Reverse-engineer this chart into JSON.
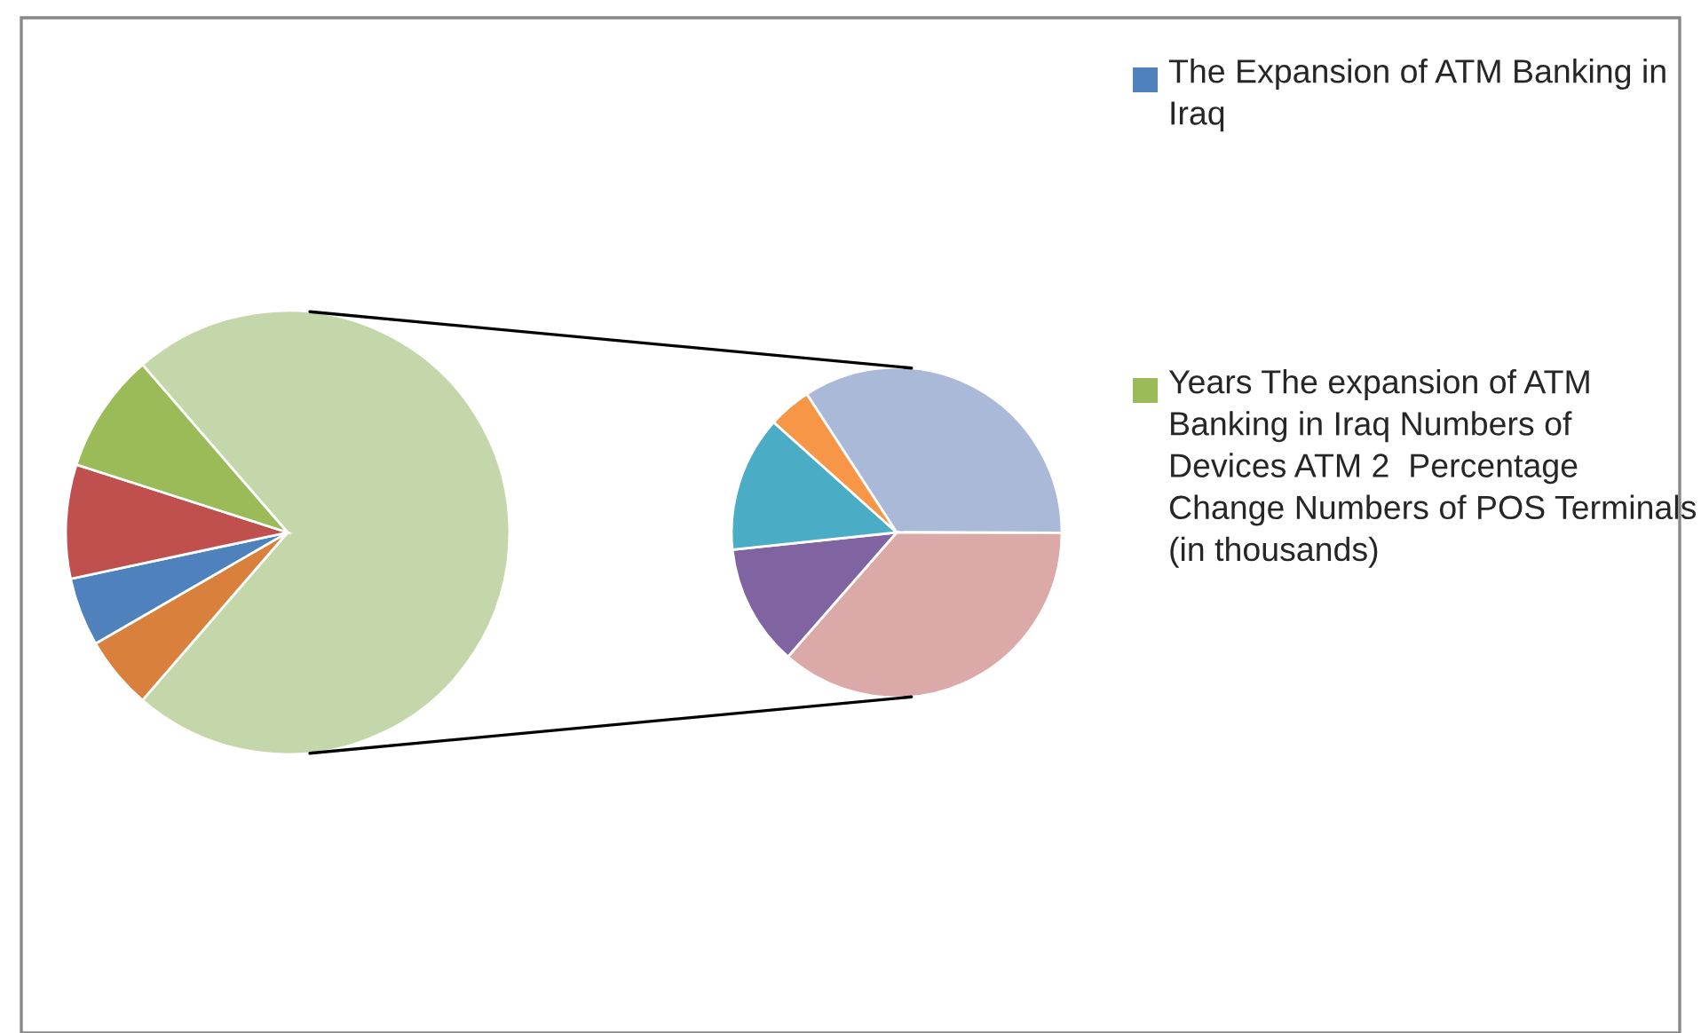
{
  "chart_data": [
    {
      "type": "pie",
      "categories": [
        null,
        null,
        "The Expansion of ATM Banking in Iraq",
        null,
        "Years The expansion of ATM Banking in Iraq Numbers of  Devices ATM 2  Percentage Change Numbers of POS Terminals (in thousands)"
      ],
      "values": [
        72.7,
        5.3,
        5.0,
        8.3,
        8.7
      ],
      "colors": [
        "#c4d7aa",
        "#d9803c",
        "#4f81bd",
        "#c0504d",
        "#9bbb59"
      ],
      "legend": "right"
    },
    {
      "type": "pie",
      "categories": [
        null,
        null,
        null,
        null,
        null
      ],
      "values": [
        34.2,
        36.4,
        11.9,
        13.3,
        4.2
      ],
      "colors": [
        "#abb9d8",
        "#dba9a8",
        "#8064a2",
        "#4bacc6",
        "#f79646"
      ]
    }
  ]
}
